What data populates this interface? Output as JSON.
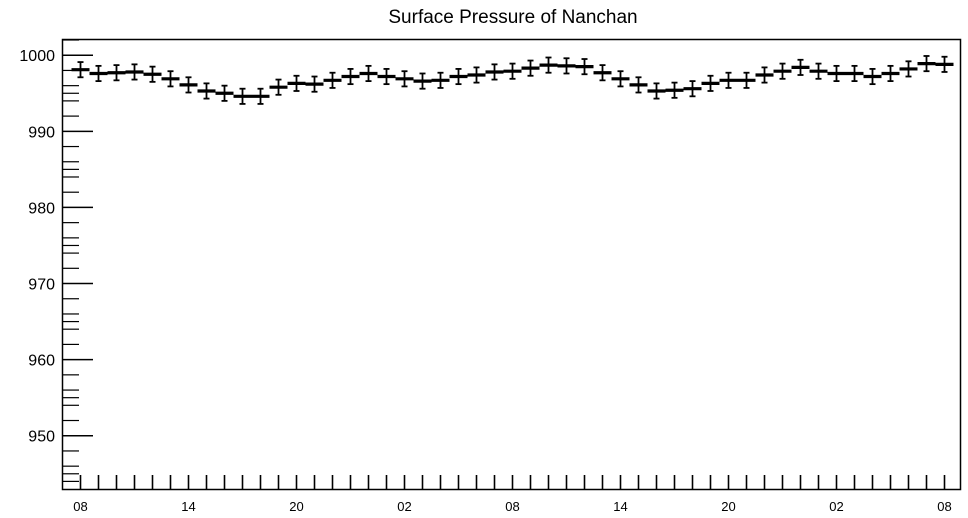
{
  "chart_data": {
    "type": "scatter",
    "title": "Surface Pressure of Nanchan",
    "xlabel": "",
    "ylabel": "",
    "ylim": [
      943,
      1002
    ],
    "yticks": [
      950,
      960,
      970,
      980,
      990,
      1000
    ],
    "xtick_labels": [
      "08",
      "14",
      "20",
      "02",
      "08",
      "14",
      "20",
      "02",
      "08"
    ],
    "grid": false,
    "error_bar": 1.0,
    "series": [
      {
        "hours": [
          0,
          1,
          2,
          3,
          4,
          5,
          6,
          7,
          8,
          9,
          10,
          11,
          12,
          13,
          14,
          15,
          16,
          17,
          18,
          19,
          20,
          21,
          22,
          23,
          24,
          25,
          26,
          27,
          28,
          29,
          30,
          31,
          32,
          33,
          34,
          35,
          36,
          37,
          38,
          39,
          40,
          41,
          42,
          43,
          44,
          45,
          46,
          47,
          48
        ],
        "values": [
          998.1,
          997.6,
          997.7,
          997.8,
          997.5,
          996.9,
          996.1,
          995.3,
          995.0,
          994.6,
          994.6,
          995.8,
          996.3,
          996.2,
          996.7,
          997.2,
          997.6,
          997.2,
          996.9,
          996.6,
          996.7,
          997.2,
          997.4,
          997.8,
          997.9,
          998.3,
          998.7,
          998.6,
          998.5,
          997.7,
          996.9,
          996.1,
          995.3,
          995.4,
          995.6,
          996.3,
          996.7,
          996.7,
          997.4,
          997.9,
          998.4,
          997.9,
          997.6,
          997.6,
          997.2,
          997.6,
          998.2,
          998.9,
          998.8
        ]
      }
    ]
  }
}
